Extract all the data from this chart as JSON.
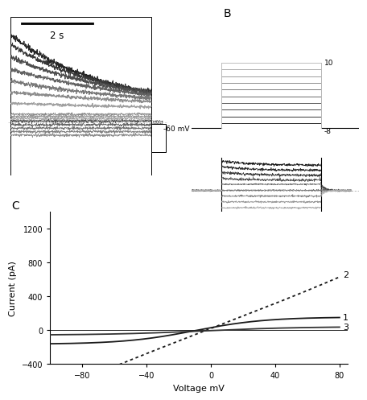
{
  "panel_B_label": "B",
  "panel_C_label": "C",
  "scale_bar_text": "2 s",
  "holding_mv": "-60 mV",
  "top_mv": "10",
  "bottom_mv": "-8",
  "xlabel": "Voltage mV",
  "ylabel": "Current (pA)",
  "ylim": [
    -400,
    1400
  ],
  "xlim": [
    -100,
    85
  ],
  "yticks": [
    -400,
    0,
    400,
    800,
    1200
  ],
  "xticks": [
    -80,
    -40,
    0,
    40,
    80
  ],
  "background_color": "#ffffff",
  "label_fontsize": 8,
  "tick_fontsize": 7
}
